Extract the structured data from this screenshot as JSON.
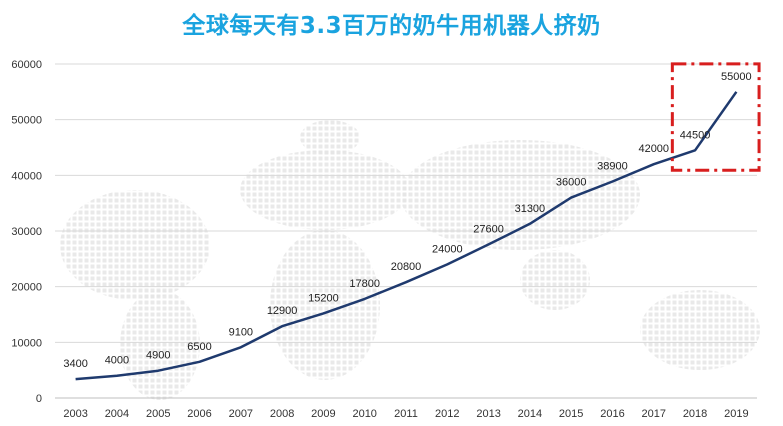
{
  "chart_data": {
    "type": "line",
    "title": "全球每天有3.3百万的奶牛用机器人挤奶",
    "xlabel": "",
    "ylabel": "",
    "categories": [
      "2003",
      "2004",
      "2005",
      "2006",
      "2007",
      "2008",
      "2009",
      "2010",
      "2011",
      "2012",
      "2013",
      "2014",
      "2015",
      "2016",
      "2017",
      "2018",
      "2019"
    ],
    "series": [
      {
        "values": [
          3400,
          4000,
          4900,
          6500,
          9100,
          12900,
          15200,
          17800,
          20800,
          24000,
          27600,
          31300,
          36000,
          38900,
          42000,
          44500,
          55000
        ]
      }
    ],
    "data_labels": [
      "3400",
      "4000",
      "4900",
      "6500",
      "9100",
      "12900",
      "15200",
      "17800",
      "20800",
      "24000",
      "27600",
      "31300",
      "36000",
      "38900",
      "42000",
      "44500",
      "55000"
    ],
    "y_ticks": [
      "0",
      "10000",
      "20000",
      "30000",
      "40000",
      "50000",
      "60000"
    ],
    "ylim": [
      0,
      60000
    ],
    "grid": "horizontal",
    "legend": "none",
    "highlight": {
      "categories": [
        "2018",
        "2019"
      ],
      "style": "dash-dot box",
      "color": "#d81e1e"
    },
    "colors": {
      "title": "#1aa3df",
      "line": "#1f3a6e",
      "grid": "#d9d9d9",
      "axis": "#bfbfbf",
      "background_map": "#e9e9e9"
    }
  }
}
